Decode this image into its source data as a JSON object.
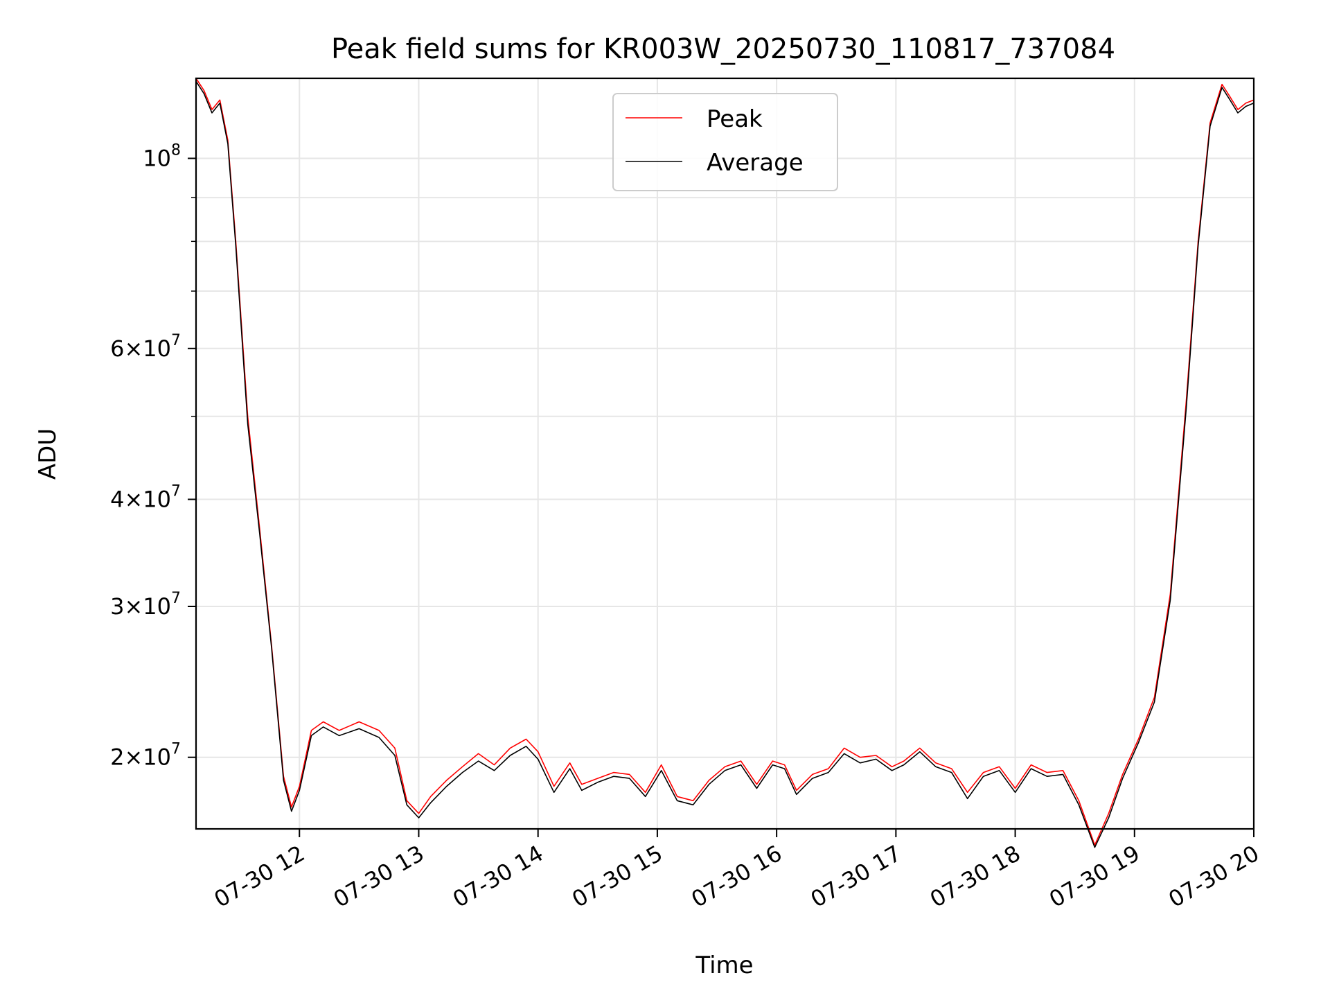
{
  "chart_data": {
    "type": "line",
    "title": "Peak field sums for KR003W_20250730_110817_737084",
    "xlabel": "Time",
    "ylabel": "ADU",
    "y_scale": "log",
    "ylim": [
      16500000,
      124000000
    ],
    "xlim": [
      "2025-07-30 11:08",
      "2025-07-30 20:00"
    ],
    "grid": true,
    "legend_position": "upper center",
    "x_ticks": [
      {
        "time": "2025-07-30 12:00",
        "label": "07-30 12"
      },
      {
        "time": "2025-07-30 13:00",
        "label": "07-30 13"
      },
      {
        "time": "2025-07-30 14:00",
        "label": "07-30 14"
      },
      {
        "time": "2025-07-30 15:00",
        "label": "07-30 15"
      },
      {
        "time": "2025-07-30 16:00",
        "label": "07-30 16"
      },
      {
        "time": "2025-07-30 17:00",
        "label": "07-30 17"
      },
      {
        "time": "2025-07-30 18:00",
        "label": "07-30 18"
      },
      {
        "time": "2025-07-30 19:00",
        "label": "07-30 19"
      },
      {
        "time": "2025-07-30 20:00",
        "label": "07-30 20"
      }
    ],
    "y_ticks_major": [
      {
        "value": 100000000,
        "mantissa": "",
        "base": "10",
        "exp": "8"
      },
      {
        "value": 60000000,
        "mantissa": "6",
        "base": "10",
        "exp": "7"
      },
      {
        "value": 40000000,
        "mantissa": "4",
        "base": "10",
        "exp": "7"
      },
      {
        "value": 30000000,
        "mantissa": "3",
        "base": "10",
        "exp": "7"
      },
      {
        "value": 20000000,
        "mantissa": "2",
        "base": "10",
        "exp": "7"
      }
    ],
    "y_ticks_minor": [
      90000000,
      80000000,
      70000000,
      50000000
    ],
    "series": [
      {
        "name": "Peak",
        "color": "#ff0000",
        "x": [
          "2025-07-30 11:08",
          "2025-07-30 11:12",
          "2025-07-30 11:16",
          "2025-07-30 11:20",
          "2025-07-30 11:24",
          "2025-07-30 11:28",
          "2025-07-30 11:34",
          "2025-07-30 11:40",
          "2025-07-30 11:46",
          "2025-07-30 11:52",
          "2025-07-30 11:56",
          "2025-07-30 12:00",
          "2025-07-30 12:06",
          "2025-07-30 12:12",
          "2025-07-30 12:20",
          "2025-07-30 12:30",
          "2025-07-30 12:40",
          "2025-07-30 12:48",
          "2025-07-30 12:54",
          "2025-07-30 13:00",
          "2025-07-30 13:06",
          "2025-07-30 13:14",
          "2025-07-30 13:22",
          "2025-07-30 13:30",
          "2025-07-30 13:38",
          "2025-07-30 13:46",
          "2025-07-30 13:54",
          "2025-07-30 14:00",
          "2025-07-30 14:08",
          "2025-07-30 14:16",
          "2025-07-30 14:22",
          "2025-07-30 14:30",
          "2025-07-30 14:38",
          "2025-07-30 14:46",
          "2025-07-30 14:54",
          "2025-07-30 15:02",
          "2025-07-30 15:10",
          "2025-07-30 15:18",
          "2025-07-30 15:26",
          "2025-07-30 15:34",
          "2025-07-30 15:42",
          "2025-07-30 15:50",
          "2025-07-30 15:58",
          "2025-07-30 16:04",
          "2025-07-30 16:10",
          "2025-07-30 16:18",
          "2025-07-30 16:26",
          "2025-07-30 16:34",
          "2025-07-30 16:42",
          "2025-07-30 16:50",
          "2025-07-30 16:58",
          "2025-07-30 17:04",
          "2025-07-30 17:12",
          "2025-07-30 17:20",
          "2025-07-30 17:28",
          "2025-07-30 17:36",
          "2025-07-30 17:44",
          "2025-07-30 17:52",
          "2025-07-30 18:00",
          "2025-07-30 18:08",
          "2025-07-30 18:16",
          "2025-07-30 18:24",
          "2025-07-30 18:32",
          "2025-07-30 18:40",
          "2025-07-30 18:47",
          "2025-07-30 18:54",
          "2025-07-30 19:02",
          "2025-07-30 19:10",
          "2025-07-30 19:18",
          "2025-07-30 19:26",
          "2025-07-30 19:32",
          "2025-07-30 19:38",
          "2025-07-30 19:44",
          "2025-07-30 19:48",
          "2025-07-30 19:52",
          "2025-07-30 19:56",
          "2025-07-30 20:00"
        ],
        "values": [
          124000000,
          120000000,
          114000000,
          117000000,
          105000000,
          80000000,
          50000000,
          37000000,
          27000000,
          19000000,
          17500000,
          18500000,
          21500000,
          22000000,
          21500000,
          22000000,
          21500000,
          20500000,
          17800000,
          17200000,
          18000000,
          18800000,
          19500000,
          20200000,
          19600000,
          20500000,
          21000000,
          20300000,
          18500000,
          19700000,
          18600000,
          18900000,
          19200000,
          19100000,
          18200000,
          19600000,
          18000000,
          17800000,
          18800000,
          19500000,
          19800000,
          18600000,
          19800000,
          19600000,
          18300000,
          19100000,
          19400000,
          20500000,
          20000000,
          20100000,
          19500000,
          19800000,
          20500000,
          19700000,
          19400000,
          18200000,
          19200000,
          19500000,
          18400000,
          19600000,
          19200000,
          19300000,
          17800000,
          15800000,
          17200000,
          19100000,
          21000000,
          23500000,
          31000000,
          52000000,
          80000000,
          110000000,
          122000000,
          118000000,
          114000000,
          116000000,
          117000000
        ]
      },
      {
        "name": "Average",
        "color": "#000000",
        "x": [
          "2025-07-30 11:08",
          "2025-07-30 11:12",
          "2025-07-30 11:16",
          "2025-07-30 11:20",
          "2025-07-30 11:24",
          "2025-07-30 11:28",
          "2025-07-30 11:34",
          "2025-07-30 11:40",
          "2025-07-30 11:46",
          "2025-07-30 11:52",
          "2025-07-30 11:56",
          "2025-07-30 12:00",
          "2025-07-30 12:06",
          "2025-07-30 12:12",
          "2025-07-30 12:20",
          "2025-07-30 12:30",
          "2025-07-30 12:40",
          "2025-07-30 12:48",
          "2025-07-30 12:54",
          "2025-07-30 13:00",
          "2025-07-30 13:06",
          "2025-07-30 13:14",
          "2025-07-30 13:22",
          "2025-07-30 13:30",
          "2025-07-30 13:38",
          "2025-07-30 13:46",
          "2025-07-30 13:54",
          "2025-07-30 14:00",
          "2025-07-30 14:08",
          "2025-07-30 14:16",
          "2025-07-30 14:22",
          "2025-07-30 14:30",
          "2025-07-30 14:38",
          "2025-07-30 14:46",
          "2025-07-30 14:54",
          "2025-07-30 15:02",
          "2025-07-30 15:10",
          "2025-07-30 15:18",
          "2025-07-30 15:26",
          "2025-07-30 15:34",
          "2025-07-30 15:42",
          "2025-07-30 15:50",
          "2025-07-30 15:58",
          "2025-07-30 16:04",
          "2025-07-30 16:10",
          "2025-07-30 16:18",
          "2025-07-30 16:26",
          "2025-07-30 16:34",
          "2025-07-30 16:42",
          "2025-07-30 16:50",
          "2025-07-30 16:58",
          "2025-07-30 17:04",
          "2025-07-30 17:12",
          "2025-07-30 17:20",
          "2025-07-30 17:28",
          "2025-07-30 17:36",
          "2025-07-30 17:44",
          "2025-07-30 17:52",
          "2025-07-30 18:00",
          "2025-07-30 18:08",
          "2025-07-30 18:16",
          "2025-07-30 18:24",
          "2025-07-30 18:32",
          "2025-07-30 18:40",
          "2025-07-30 18:47",
          "2025-07-30 18:54",
          "2025-07-30 19:02",
          "2025-07-30 19:10",
          "2025-07-30 19:18",
          "2025-07-30 19:26",
          "2025-07-30 19:32",
          "2025-07-30 19:38",
          "2025-07-30 19:44",
          "2025-07-30 19:48",
          "2025-07-30 19:52",
          "2025-07-30 19:56",
          "2025-07-30 20:00"
        ],
        "values": [
          123000000,
          119000000,
          113000000,
          116000000,
          104000000,
          79000000,
          49000000,
          36500000,
          26800000,
          18800000,
          17300000,
          18300000,
          21200000,
          21700000,
          21200000,
          21600000,
          21100000,
          20100000,
          17600000,
          17000000,
          17700000,
          18500000,
          19200000,
          19800000,
          19300000,
          20100000,
          20600000,
          19900000,
          18200000,
          19400000,
          18300000,
          18700000,
          19000000,
          18900000,
          18000000,
          19300000,
          17800000,
          17600000,
          18600000,
          19300000,
          19600000,
          18400000,
          19600000,
          19400000,
          18100000,
          18900000,
          19200000,
          20200000,
          19700000,
          19900000,
          19300000,
          19600000,
          20300000,
          19500000,
          19200000,
          17900000,
          19000000,
          19300000,
          18200000,
          19400000,
          19000000,
          19100000,
          17600000,
          15700000,
          17000000,
          18900000,
          20800000,
          23200000,
          30500000,
          51000000,
          79000000,
          109000000,
          121000000,
          117000000,
          113000000,
          115000000,
          116000000
        ]
      }
    ]
  }
}
